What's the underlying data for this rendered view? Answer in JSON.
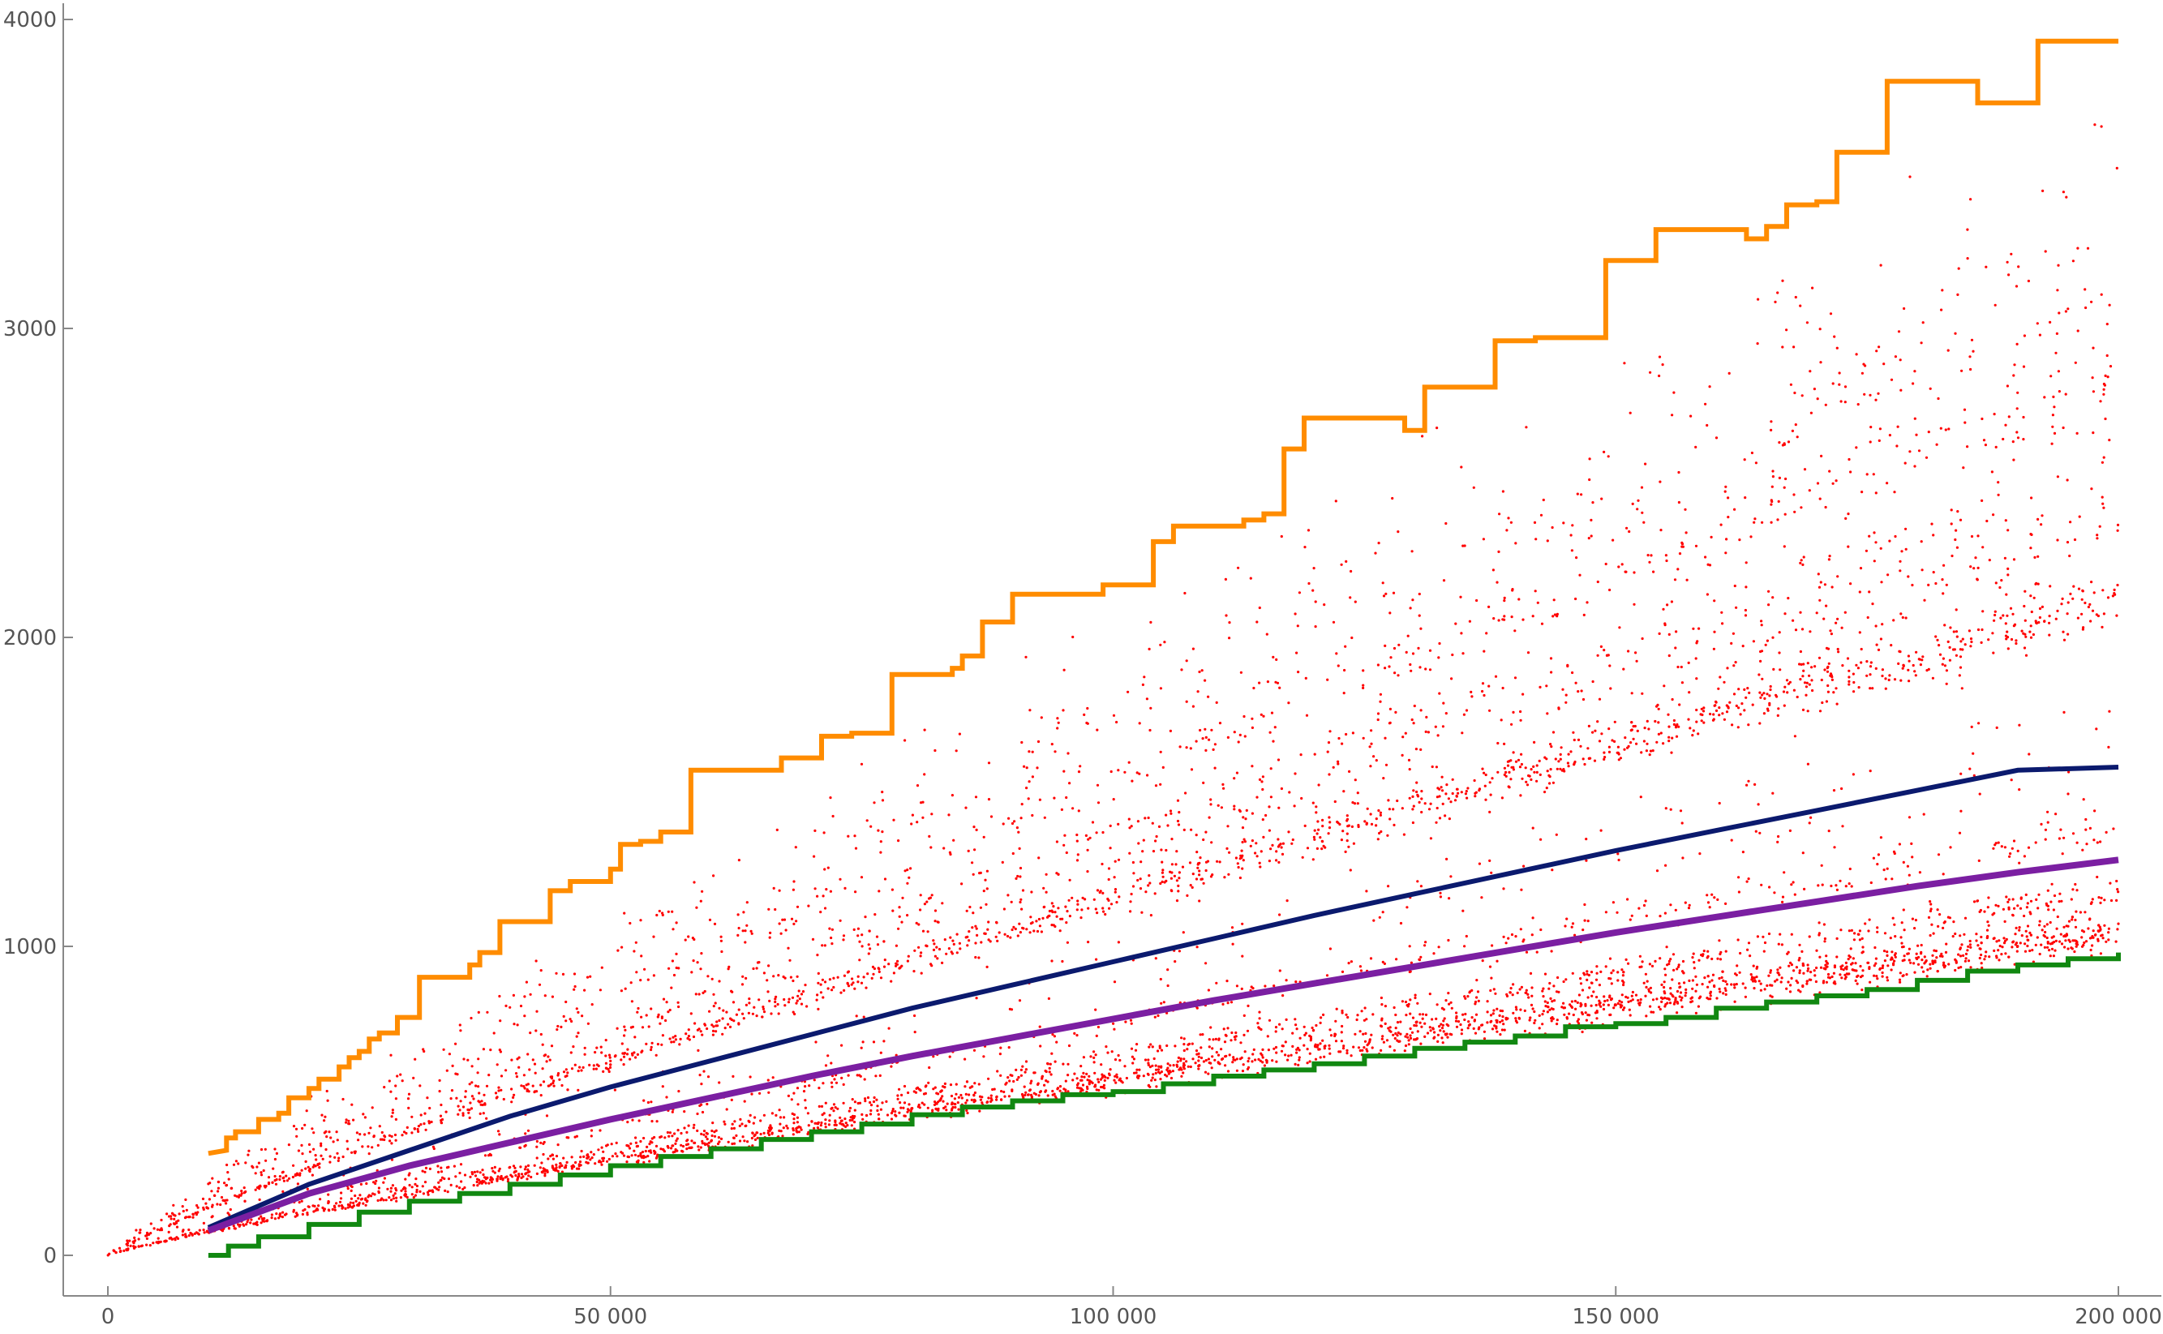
{
  "chart_data": {
    "type": "scatter",
    "title": "",
    "xlabel": "",
    "ylabel": "",
    "xlim": [
      0,
      200000
    ],
    "ylim": [
      0,
      4000
    ],
    "x_ticks": [
      0,
      50000,
      100000,
      150000,
      200000
    ],
    "x_tick_labels": [
      "0",
      "50 000",
      "100 000",
      "150 000",
      "200 000"
    ],
    "y_ticks": [
      0,
      1000,
      2000,
      3000,
      4000
    ],
    "y_tick_labels": [
      "0",
      "1000",
      "2000",
      "3000",
      "4000"
    ],
    "grid": false,
    "legend": "none",
    "scatter": {
      "color": "#ff0000",
      "n_points": 6000,
      "x_range": [
        0,
        200000
      ],
      "bands": [
        {
          "value_at_x_max": 1050,
          "weight": 0.3,
          "spread": 0.05
        },
        {
          "value_at_x_max": 1180,
          "weight": 0.12,
          "spread": 0.04
        },
        {
          "value_at_x_max": 1400,
          "weight": 0.06,
          "spread": 0.04
        },
        {
          "value_at_x_max": 2130,
          "weight": 0.2,
          "spread": 0.035
        },
        {
          "value_at_x_max": 2350,
          "weight": 0.07,
          "spread": 0.04
        },
        {
          "value_at_x_max": 2550,
          "weight": 0.06,
          "spread": 0.04
        },
        {
          "value_at_x_max": 2820,
          "weight": 0.06,
          "spread": 0.03
        },
        {
          "value_at_x_max": 3100,
          "weight": 0.05,
          "spread": 0.06
        },
        {
          "value_at_x_max": 1700,
          "weight": 0.04,
          "spread": 0.12
        },
        {
          "value_at_x_max": 3400,
          "weight": 0.04,
          "spread": 0.08
        }
      ]
    },
    "series": [
      {
        "color": "#ff8c00",
        "style": "step",
        "points": [
          [
            10000,
            330
          ],
          [
            11800,
            340
          ],
          [
            11800,
            380
          ],
          [
            12700,
            380
          ],
          [
            12700,
            400
          ],
          [
            15000,
            400
          ],
          [
            15000,
            440
          ],
          [
            17000,
            440
          ],
          [
            17000,
            460
          ],
          [
            18000,
            460
          ],
          [
            18000,
            510
          ],
          [
            20000,
            510
          ],
          [
            20000,
            540
          ],
          [
            21000,
            540
          ],
          [
            21000,
            570
          ],
          [
            23000,
            570
          ],
          [
            23000,
            610
          ],
          [
            24000,
            610
          ],
          [
            24000,
            640
          ],
          [
            25000,
            640
          ],
          [
            25000,
            660
          ],
          [
            26000,
            660
          ],
          [
            26000,
            700
          ],
          [
            27000,
            700
          ],
          [
            27000,
            720
          ],
          [
            28800,
            720
          ],
          [
            28800,
            770
          ],
          [
            30000,
            770
          ],
          [
            31000,
            770
          ],
          [
            31000,
            900
          ],
          [
            34000,
            900
          ],
          [
            34000,
            900
          ],
          [
            36000,
            900
          ],
          [
            36000,
            940
          ],
          [
            37000,
            940
          ],
          [
            37000,
            980
          ],
          [
            39000,
            980
          ],
          [
            39000,
            1080
          ],
          [
            44000,
            1080
          ],
          [
            44000,
            1180
          ],
          [
            46000,
            1180
          ],
          [
            46000,
            1210
          ],
          [
            50000,
            1210
          ],
          [
            50000,
            1250
          ],
          [
            51000,
            1250
          ],
          [
            51000,
            1330
          ],
          [
            53000,
            1330
          ],
          [
            53000,
            1340
          ],
          [
            55000,
            1340
          ],
          [
            55000,
            1370
          ],
          [
            58000,
            1370
          ],
          [
            58000,
            1570
          ],
          [
            67000,
            1570
          ],
          [
            67000,
            1610
          ],
          [
            71000,
            1610
          ],
          [
            71000,
            1680
          ],
          [
            74000,
            1680
          ],
          [
            74000,
            1690
          ],
          [
            78000,
            1690
          ],
          [
            78000,
            1880
          ],
          [
            84000,
            1880
          ],
          [
            84000,
            1900
          ],
          [
            85000,
            1900
          ],
          [
            85000,
            1940
          ],
          [
            87000,
            1940
          ],
          [
            87000,
            2050
          ],
          [
            90000,
            2050
          ],
          [
            90000,
            2140
          ],
          [
            99000,
            2140
          ],
          [
            99000,
            2170
          ],
          [
            104000,
            2170
          ],
          [
            104000,
            2310
          ],
          [
            106000,
            2310
          ],
          [
            106000,
            2360
          ],
          [
            113000,
            2360
          ],
          [
            113000,
            2380
          ],
          [
            115000,
            2380
          ],
          [
            115000,
            2400
          ],
          [
            117000,
            2400
          ],
          [
            117000,
            2610
          ],
          [
            119000,
            2610
          ],
          [
            119000,
            2710
          ],
          [
            127000,
            2710
          ],
          [
            127000,
            2710
          ],
          [
            129000,
            2710
          ],
          [
            129000,
            2670
          ],
          [
            131000,
            2670
          ],
          [
            131000,
            2810
          ],
          [
            138000,
            2810
          ],
          [
            138000,
            2960
          ],
          [
            142000,
            2960
          ],
          [
            142000,
            2970
          ],
          [
            149000,
            2970
          ],
          [
            149000,
            3220
          ],
          [
            154000,
            3220
          ],
          [
            154000,
            3320
          ],
          [
            163000,
            3320
          ],
          [
            163000,
            3290
          ],
          [
            165000,
            3290
          ],
          [
            165000,
            3330
          ],
          [
            167000,
            3330
          ],
          [
            167000,
            3400
          ],
          [
            170000,
            3400
          ],
          [
            170000,
            3410
          ],
          [
            172000,
            3410
          ],
          [
            172000,
            3570
          ],
          [
            177000,
            3570
          ],
          [
            177000,
            3800
          ],
          [
            186000,
            3800
          ],
          [
            186000,
            3730
          ],
          [
            192000,
            3730
          ],
          [
            192000,
            3930
          ],
          [
            200000,
            3930
          ]
        ]
      },
      {
        "color": "#0b1a6e",
        "style": "line",
        "points": [
          [
            10000,
            90
          ],
          [
            20000,
            230
          ],
          [
            30000,
            340
          ],
          [
            40000,
            450
          ],
          [
            50000,
            545
          ],
          [
            60000,
            630
          ],
          [
            70000,
            715
          ],
          [
            80000,
            800
          ],
          [
            90000,
            875
          ],
          [
            100000,
            950
          ],
          [
            110000,
            1025
          ],
          [
            120000,
            1100
          ],
          [
            130000,
            1170
          ],
          [
            140000,
            1240
          ],
          [
            150000,
            1310
          ],
          [
            160000,
            1375
          ],
          [
            170000,
            1440
          ],
          [
            180000,
            1505
          ],
          [
            190000,
            1570
          ],
          [
            200000,
            1580
          ]
        ]
      },
      {
        "color": "#7b1fa2",
        "style": "line",
        "points": [
          [
            10000,
            80
          ],
          [
            20000,
            200
          ],
          [
            30000,
            290
          ],
          [
            40000,
            365
          ],
          [
            50000,
            440
          ],
          [
            60000,
            510
          ],
          [
            70000,
            580
          ],
          [
            80000,
            645
          ],
          [
            90000,
            705
          ],
          [
            100000,
            765
          ],
          [
            110000,
            825
          ],
          [
            120000,
            880
          ],
          [
            130000,
            935
          ],
          [
            140000,
            990
          ],
          [
            150000,
            1045
          ],
          [
            160000,
            1095
          ],
          [
            170000,
            1145
          ],
          [
            180000,
            1195
          ],
          [
            190000,
            1240
          ],
          [
            200000,
            1280
          ]
        ]
      },
      {
        "color": "#118811",
        "style": "step",
        "points": [
          [
            10000,
            0
          ],
          [
            12000,
            30
          ],
          [
            15000,
            60
          ],
          [
            20000,
            100
          ],
          [
            25000,
            140
          ],
          [
            30000,
            175
          ],
          [
            35000,
            200
          ],
          [
            40000,
            230
          ],
          [
            45000,
            260
          ],
          [
            50000,
            290
          ],
          [
            55000,
            320
          ],
          [
            60000,
            345
          ],
          [
            65000,
            375
          ],
          [
            70000,
            400
          ],
          [
            75000,
            425
          ],
          [
            80000,
            455
          ],
          [
            85000,
            480
          ],
          [
            90000,
            500
          ],
          [
            95000,
            520
          ],
          [
            100000,
            530
          ],
          [
            105000,
            555
          ],
          [
            110000,
            580
          ],
          [
            115000,
            600
          ],
          [
            120000,
            620
          ],
          [
            125000,
            645
          ],
          [
            130000,
            670
          ],
          [
            135000,
            690
          ],
          [
            140000,
            710
          ],
          [
            145000,
            740
          ],
          [
            150000,
            750
          ],
          [
            155000,
            770
          ],
          [
            160000,
            800
          ],
          [
            165000,
            820
          ],
          [
            170000,
            840
          ],
          [
            175000,
            860
          ],
          [
            180000,
            890
          ],
          [
            185000,
            920
          ],
          [
            190000,
            940
          ],
          [
            195000,
            960
          ],
          [
            200000,
            980
          ]
        ]
      }
    ]
  }
}
